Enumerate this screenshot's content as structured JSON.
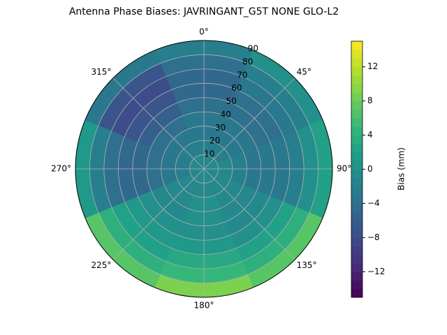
{
  "chart_data": {
    "type": "polar_contour",
    "title": "Antenna Phase Biases: JAVRINGANT_G5T  NONE GLO-L2",
    "theta": [
      0,
      45,
      90,
      135,
      180,
      225,
      270,
      315
    ],
    "r_bins": [
      0,
      10,
      20,
      30,
      40,
      50,
      60,
      70,
      80,
      90
    ],
    "values": [
      [
        -1,
        -2,
        -3,
        -3,
        -4,
        -5,
        -5,
        -4,
        -2
      ],
      [
        -1,
        -2,
        -3,
        -3,
        -4,
        -4,
        -3,
        -2,
        0
      ],
      [
        -1,
        -1,
        -2,
        -3,
        -3,
        -3,
        -2,
        0,
        2
      ],
      [
        -1,
        -1,
        -1,
        -1,
        -1,
        0,
        2,
        4,
        7
      ],
      [
        -1,
        -1,
        0,
        0,
        0,
        1,
        3,
        5,
        9
      ],
      [
        -1,
        -1,
        -1,
        -1,
        0,
        1,
        2,
        4,
        7
      ],
      [
        -1,
        -2,
        -3,
        -4,
        -5,
        -5,
        -4,
        -2,
        1
      ],
      [
        -1,
        -2,
        -3,
        -4,
        -6,
        -7,
        -8,
        -7,
        -3
      ]
    ],
    "rlim": [
      0,
      90
    ],
    "rticks": [
      10,
      20,
      30,
      40,
      50,
      60,
      70,
      80,
      90
    ],
    "thetaticks": [
      {
        "value": 0,
        "label": "0°"
      },
      {
        "value": 45,
        "label": "45°"
      },
      {
        "value": 90,
        "label": "90°"
      },
      {
        "value": 135,
        "label": "135°"
      },
      {
        "value": 180,
        "label": "180°"
      },
      {
        "value": 225,
        "label": "225°"
      },
      {
        "value": 270,
        "label": "270°"
      },
      {
        "value": 315,
        "label": "315°"
      }
    ],
    "colorbar_label": "Bias (mm)",
    "clim": [
      -15,
      15
    ],
    "cticks": [
      {
        "value": -12,
        "label": "−12"
      },
      {
        "value": -8,
        "label": "−8"
      },
      {
        "value": -4,
        "label": "−4"
      },
      {
        "value": 0,
        "label": "0"
      },
      {
        "value": 4,
        "label": "4"
      },
      {
        "value": 8,
        "label": "8"
      },
      {
        "value": 12,
        "label": "12"
      }
    ],
    "colormap": "viridis",
    "grid": true
  }
}
